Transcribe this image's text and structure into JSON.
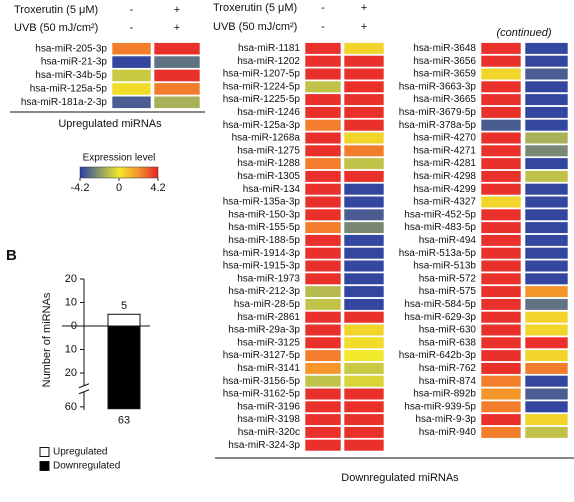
{
  "chart_data": [
    {
      "type": "heatmap",
      "conditions": [
        {
          "name": "Troxerutin (5 μM)",
          "levels": [
            "-",
            "+"
          ]
        },
        {
          "name": "UVB (50 mJ/cm²)",
          "levels": [
            "-",
            "+"
          ]
        }
      ],
      "rows": [
        "hsa-miR-205-3p",
        "hsa-miR-21-3p",
        "hsa-miR-34b-5p",
        "hsa-miR-125a-5p",
        "hsa-miR-181a-2-3p"
      ],
      "values": [
        [
          2.5,
          4
        ],
        [
          -4,
          -3
        ],
        [
          -0.8,
          4
        ],
        [
          0.3,
          2.5
        ],
        [
          -3.5,
          -1.5
        ]
      ],
      "xlabel": "Upregulated miRNAs",
      "clim": [
        -4.2,
        4.2
      ],
      "colorscale": [
        "#2a3da6",
        "#8a9a6a",
        "#f2e82a",
        "#f4922a",
        "#e8262a"
      ],
      "colorbar": {
        "title": "Expression level",
        "ticks": [
          -4.2,
          0,
          4.2
        ]
      }
    },
    {
      "type": "heatmap",
      "conditions": [
        {
          "name": "Troxerutin (5 μM)",
          "levels": [
            "-",
            "+"
          ]
        },
        {
          "name": "UVB (50 mJ/cm²)",
          "levels": [
            "-",
            "+"
          ]
        }
      ],
      "annotation": "(continued)",
      "rows": [
        "hsa-miR-1181",
        "hsa-miR-1202",
        "hsa-miR-1207-5p",
        "hsa-miR-1224-5p",
        "hsa-miR-1225-5p",
        "hsa-miR-1246",
        "hsa-miR-125a-3p",
        "hsa-miR-1268a",
        "hsa-miR-1275",
        "hsa-miR-1288",
        "hsa-miR-1305",
        "hsa-miR-134",
        "hsa-miR-135a-3p",
        "hsa-miR-150-3p",
        "hsa-miR-155-5p",
        "hsa-miR-188-5p",
        "hsa-miR-1914-3p",
        "hsa-miR-1915-3p",
        "hsa-miR-1973",
        "hsa-miR-212-3p",
        "hsa-miR-28-5p",
        "hsa-miR-2861",
        "hsa-miR-29a-3p",
        "hsa-miR-3125",
        "hsa-miR-3127-5p",
        "hsa-miR-3141",
        "hsa-miR-3156-5p",
        "hsa-miR-3162-5p",
        "hsa-miR-3196",
        "hsa-miR-3198",
        "hsa-miR-320c",
        "hsa-miR-324-3p",
        "hsa-miR-3648",
        "hsa-miR-3656",
        "hsa-miR-3659",
        "hsa-miR-3663-3p",
        "hsa-miR-3665",
        "hsa-miR-3679-5p",
        "hsa-miR-378a-5p",
        "hsa-miR-4270",
        "hsa-miR-4271",
        "hsa-miR-4281",
        "hsa-miR-4298",
        "hsa-miR-4299",
        "hsa-miR-4327",
        "hsa-miR-452-5p",
        "hsa-miR-483-5p",
        "hsa-miR-494",
        "hsa-miR-513a-5p",
        "hsa-miR-513b",
        "hsa-miR-572",
        "hsa-miR-575",
        "hsa-miR-584-5p",
        "hsa-miR-629-3p",
        "hsa-miR-630",
        "hsa-miR-638",
        "hsa-miR-642b-3p",
        "hsa-miR-762",
        "hsa-miR-874",
        "hsa-miR-892b",
        "hsa-miR-939-5p",
        "hsa-miR-9-3p",
        "hsa-miR-940"
      ],
      "values": [
        [
          4,
          0.5
        ],
        [
          4,
          4
        ],
        [
          4,
          4
        ],
        [
          -1,
          4
        ],
        [
          4,
          4
        ],
        [
          4,
          4
        ],
        [
          2.5,
          4
        ],
        [
          4,
          0.5
        ],
        [
          4,
          2.5
        ],
        [
          2.5,
          -1
        ],
        [
          4,
          4
        ],
        [
          4,
          -4
        ],
        [
          4,
          -4
        ],
        [
          4,
          -3.5
        ],
        [
          2.5,
          -2.5
        ],
        [
          4,
          -4
        ],
        [
          4,
          -4
        ],
        [
          4,
          -4
        ],
        [
          4,
          -4
        ],
        [
          -1.2,
          -4
        ],
        [
          -1,
          -4
        ],
        [
          4,
          4
        ],
        [
          4,
          0.5
        ],
        [
          4,
          0.3
        ],
        [
          2.5,
          0
        ],
        [
          2,
          -0.8
        ],
        [
          -1,
          -0.5
        ],
        [
          4,
          4
        ],
        [
          4,
          4
        ],
        [
          4,
          4
        ],
        [
          4,
          4
        ],
        [
          4,
          4
        ],
        [
          4,
          -4
        ],
        [
          4,
          -4
        ],
        [
          0.5,
          -3.5
        ],
        [
          4,
          -4
        ],
        [
          4,
          -4
        ],
        [
          4,
          -4
        ],
        [
          -3.5,
          -4
        ],
        [
          4,
          -1.5
        ],
        [
          4,
          -2.5
        ],
        [
          4,
          -4
        ],
        [
          4,
          -1
        ],
        [
          4,
          -4
        ],
        [
          0.5,
          -4
        ],
        [
          4,
          -4
        ],
        [
          4,
          -4
        ],
        [
          4,
          -4
        ],
        [
          4,
          -4
        ],
        [
          4,
          -4
        ],
        [
          4,
          -4
        ],
        [
          4,
          2
        ],
        [
          4,
          -3
        ],
        [
          4,
          0.5
        ],
        [
          4,
          0.5
        ],
        [
          4,
          4
        ],
        [
          4,
          0.5
        ],
        [
          4,
          2.5
        ],
        [
          2.5,
          -4
        ],
        [
          2,
          -3.5
        ],
        [
          2.5,
          -4
        ],
        [
          4,
          0.5
        ],
        [
          2.5,
          -1
        ]
      ],
      "xlabel": "Downregulated miRNAs",
      "clim": [
        -4.2,
        4.2
      ],
      "colorscale": [
        "#2a3da6",
        "#8a9a6a",
        "#f2e82a",
        "#f4922a",
        "#e8262a"
      ]
    },
    {
      "type": "bar",
      "panel_label": "B",
      "ylabel": "Number of miRNAs",
      "series": [
        {
          "name": "Upregulated",
          "color": "#ffffff",
          "values": [
            5
          ]
        },
        {
          "name": "Downregulated",
          "color": "#000000",
          "values": [
            -63
          ],
          "value_labels": [
            "63"
          ]
        }
      ],
      "ylim": [
        -65,
        20
      ],
      "yticks": [
        20,
        10,
        0,
        {
          "value": -10,
          "label": "10"
        },
        {
          "value": -20,
          "label": "20"
        },
        {
          "value": -60,
          "label": "60"
        }
      ],
      "axis_break": true
    }
  ]
}
